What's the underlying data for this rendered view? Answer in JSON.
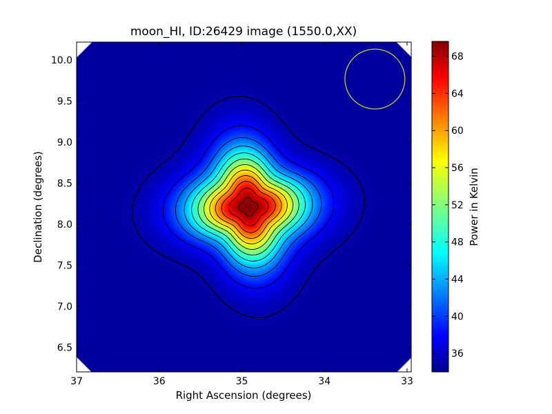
{
  "chart_data": {
    "type": "heatmap",
    "title": "moon_HI, ID:26429 image (1550.0,XX)",
    "xlabel": "Right Ascension (degrees)",
    "ylabel": "Declination (degrees)",
    "colorbar_label": "Power in Kelvin",
    "colormap": "jet",
    "xlim": [
      37,
      32.95
    ],
    "ylim": [
      6.2,
      10.22
    ],
    "x_ticks": [
      37,
      36,
      35,
      34,
      33
    ],
    "y_ticks": [
      6.5,
      7.0,
      7.5,
      8.0,
      8.5,
      9.0,
      9.5,
      10.0
    ],
    "x_tick_labels": [
      "37",
      "36",
      "35",
      "34",
      "33"
    ],
    "y_tick_labels": [
      "6.5",
      "7.0",
      "7.5",
      "8.0",
      "8.5",
      "9.0",
      "9.5",
      "10.0"
    ],
    "colorbar_range": [
      34,
      69.6
    ],
    "colorbar_ticks": [
      36,
      40,
      44,
      48,
      52,
      56,
      60,
      64,
      68
    ],
    "colorbar_tick_labels": [
      "36",
      "40",
      "44",
      "48",
      "52",
      "56",
      "60",
      "64",
      "68"
    ],
    "background_level": 35,
    "source": {
      "ra": 34.92,
      "dec": 8.21,
      "peak": 69.5,
      "sigma_deg": 0.42
    },
    "contour_levels": [
      35.5,
      38.5,
      41.5,
      44.5,
      47.5,
      50.5,
      53.5,
      56.5,
      59.5,
      62.5,
      65.5,
      68.5
    ],
    "beam_circle": {
      "ra": 33.39,
      "dec": 9.77,
      "radius_deg": 0.365,
      "color": "#c8c832"
    },
    "grid": false
  }
}
